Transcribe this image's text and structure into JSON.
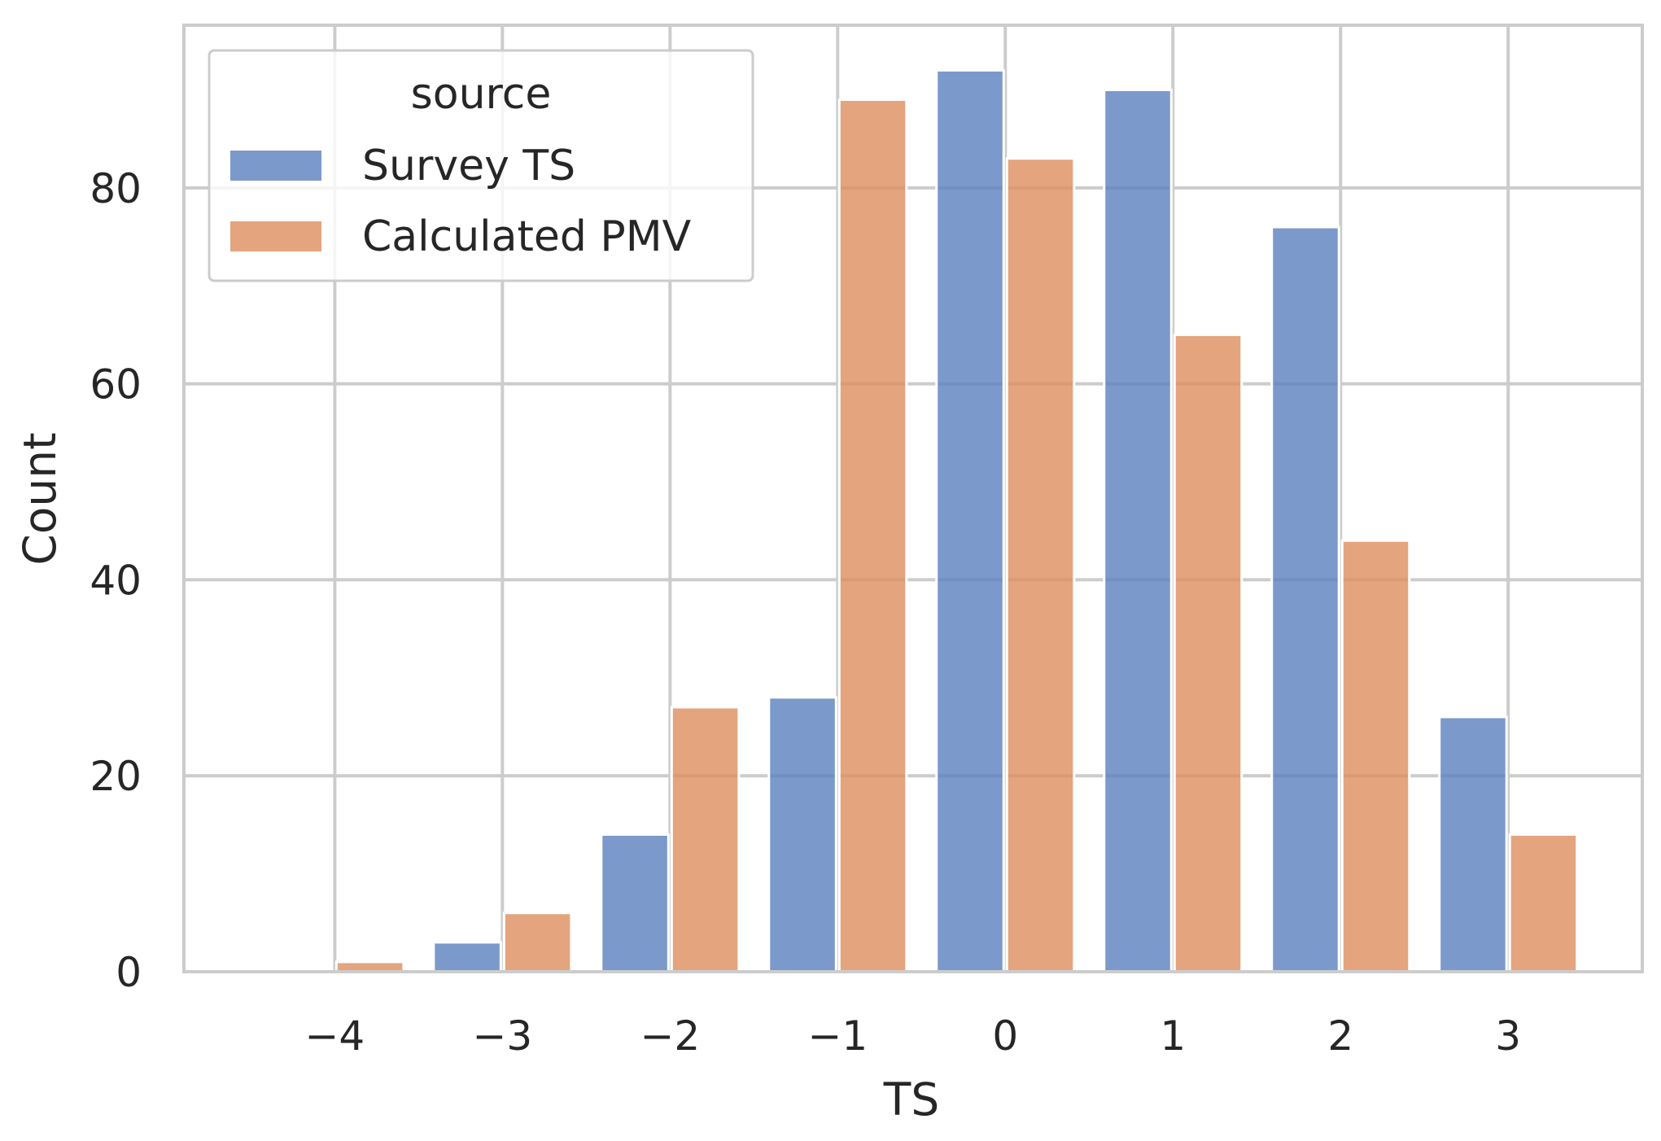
{
  "chart_data": {
    "type": "bar",
    "title": "",
    "xlabel": "TS",
    "ylabel": "Count",
    "categories": [
      -4,
      -3,
      -2,
      -1,
      0,
      1,
      2,
      3
    ],
    "xtick_labels": [
      "−4",
      "−3",
      "−2",
      "−1",
      "0",
      "1",
      "2",
      "3"
    ],
    "ytick_values": [
      0,
      20,
      40,
      60,
      80
    ],
    "ylim": [
      0,
      96.6
    ],
    "xlim": [
      -4.9,
      3.8
    ],
    "grid": true,
    "legend": {
      "title": "source",
      "placement": "top-left"
    },
    "series": [
      {
        "name": "Survey TS",
        "color": "#5a7fbd",
        "values": [
          0,
          3,
          14,
          28,
          92,
          90,
          76,
          26
        ]
      },
      {
        "name": "Calculated PMV",
        "color": "#dd8d5e",
        "values": [
          1,
          6,
          27,
          89,
          83,
          65,
          44,
          14
        ]
      }
    ]
  }
}
